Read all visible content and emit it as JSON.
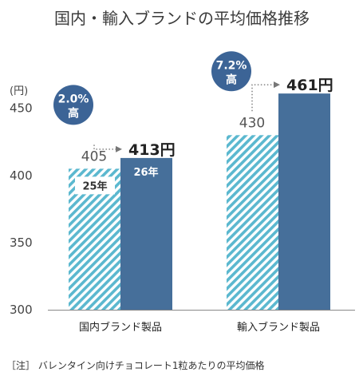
{
  "chart_data": {
    "type": "bar",
    "title": "国内・輸入ブランドの平均価格推移",
    "unit_label": "(円)",
    "categories": [
      "国内ブランド製品",
      "輸入ブランド製品"
    ],
    "series": [
      {
        "name": "25年",
        "values": [
          405,
          430
        ],
        "style": "hatched",
        "color": "#5bb8cf"
      },
      {
        "name": "26年",
        "values": [
          413,
          461
        ],
        "style": "solid",
        "color": "#466f9a"
      }
    ],
    "value_labels": {
      "previous": [
        "405",
        "430"
      ],
      "current": [
        "413円",
        "461円"
      ]
    },
    "changes": [
      {
        "percent": "2.0%",
        "word": "高"
      },
      {
        "percent": "7.2%",
        "word": "高"
      }
    ],
    "yticks": [
      "450",
      "400",
      "350",
      "300"
    ],
    "ylim": [
      300,
      470
    ],
    "grid": false,
    "legend": "inside bars",
    "note": "［注］ バレンタイン向けチョコレート1粒あたりの平均価格"
  },
  "colors": {
    "bubble": "#3c6496",
    "solid_bar": "#466f9a",
    "hatch_light": "#5bb8cf",
    "arrow": "#777777"
  }
}
